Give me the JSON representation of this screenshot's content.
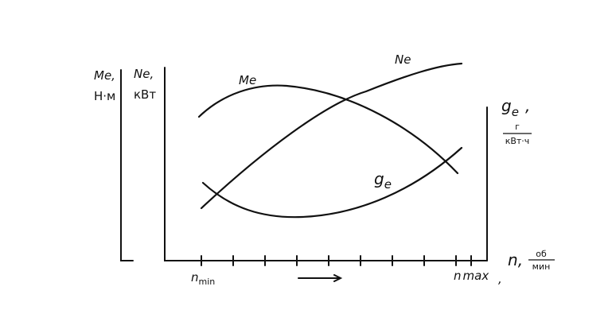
{
  "left_axis": {
    "label": "Me,",
    "unit": "Н·м"
  },
  "middle_axis": {
    "label": "Ne,",
    "unit": "кВт"
  },
  "right_axis": {
    "symbol": "g",
    "subscript": "e",
    "comma": ",",
    "unit_top": "г",
    "unit_bottom": "кВт·ч"
  },
  "x_axis": {
    "symbol": "n",
    "comma": ",",
    "unit_top": "об",
    "unit_bottom": "мин",
    "min_symbol": "n",
    "min_subscript": "min",
    "max_symbol": "n",
    "max_subscript": "max",
    "trailing": ","
  },
  "curves": [
    {
      "label": "Me"
    },
    {
      "label": "Ne"
    },
    {
      "symbol": "g",
      "subscript": "e"
    }
  ]
}
